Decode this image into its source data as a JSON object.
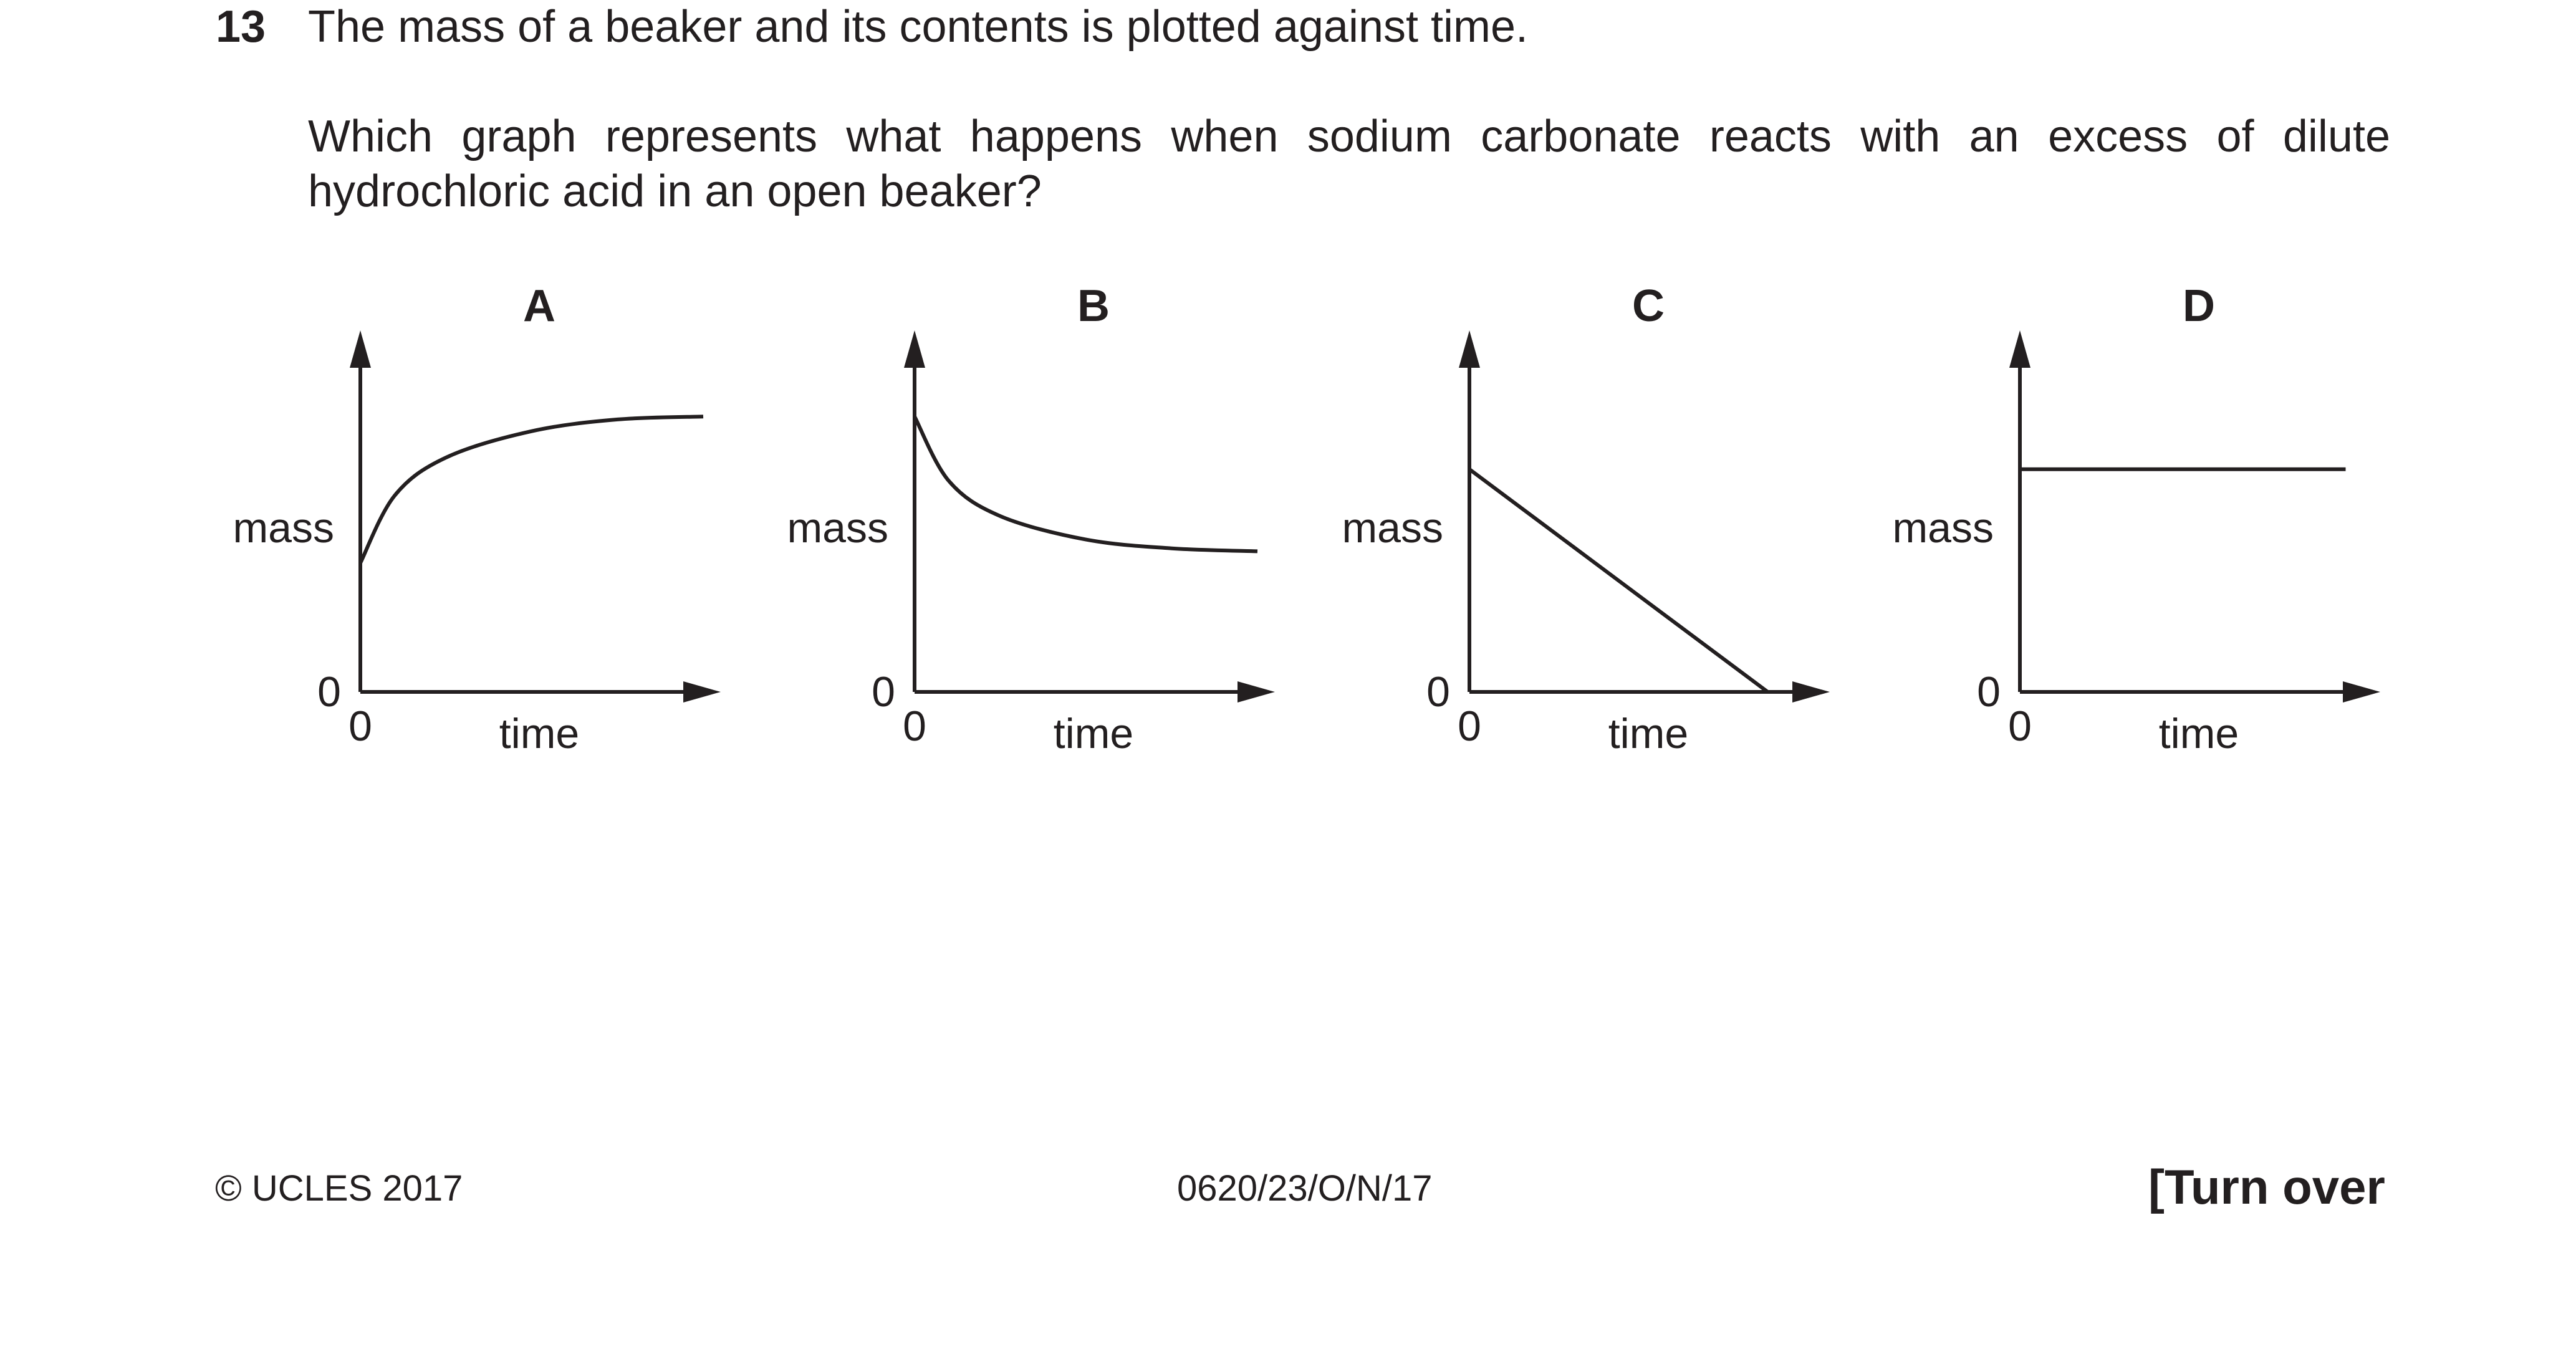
{
  "question": {
    "number": "13",
    "stem": "The mass of a beaker and its contents is plotted against time.",
    "line1": "Which graph represents what happens when sodium carbonate reacts with an excess of dilute",
    "line2": "hydrochloric acid in an open beaker?"
  },
  "chart_data": [
    {
      "type": "line",
      "title": "A",
      "xlabel": "time",
      "ylabel": "mass",
      "x_origin_label": "0",
      "y_origin_label": "0",
      "shape": "curve rising from a non-zero starting mass and levelling off",
      "x": [
        0,
        0.1,
        0.25,
        0.5,
        0.75,
        1
      ],
      "y": [
        0.44,
        0.67,
        0.8,
        0.89,
        0.93,
        0.94
      ],
      "grid": false
    },
    {
      "type": "line",
      "title": "B",
      "xlabel": "time",
      "ylabel": "mass",
      "x_origin_label": "0",
      "y_origin_label": "0",
      "shape": "curve falling from a starting mass and levelling off at a non-zero mass",
      "x": [
        0,
        0.1,
        0.25,
        0.5,
        0.75,
        1
      ],
      "y": [
        0.94,
        0.72,
        0.6,
        0.52,
        0.49,
        0.48
      ],
      "grid": false
    },
    {
      "type": "line",
      "title": "C",
      "xlabel": "time",
      "ylabel": "mass",
      "x_origin_label": "0",
      "y_origin_label": "0",
      "shape": "straight line falling to zero mass",
      "x": [
        0,
        0.87
      ],
      "y": [
        0.76,
        0
      ],
      "grid": false
    },
    {
      "type": "line",
      "title": "D",
      "xlabel": "time",
      "ylabel": "mass",
      "x_origin_label": "0",
      "y_origin_label": "0",
      "shape": "horizontal line at constant mass",
      "x": [
        0,
        0.95
      ],
      "y": [
        0.76,
        0.76
      ],
      "grid": false
    }
  ],
  "footer": {
    "copyright": "© UCLES 2017",
    "code": "0620/23/O/N/17",
    "turn_over": "[Turn over"
  }
}
